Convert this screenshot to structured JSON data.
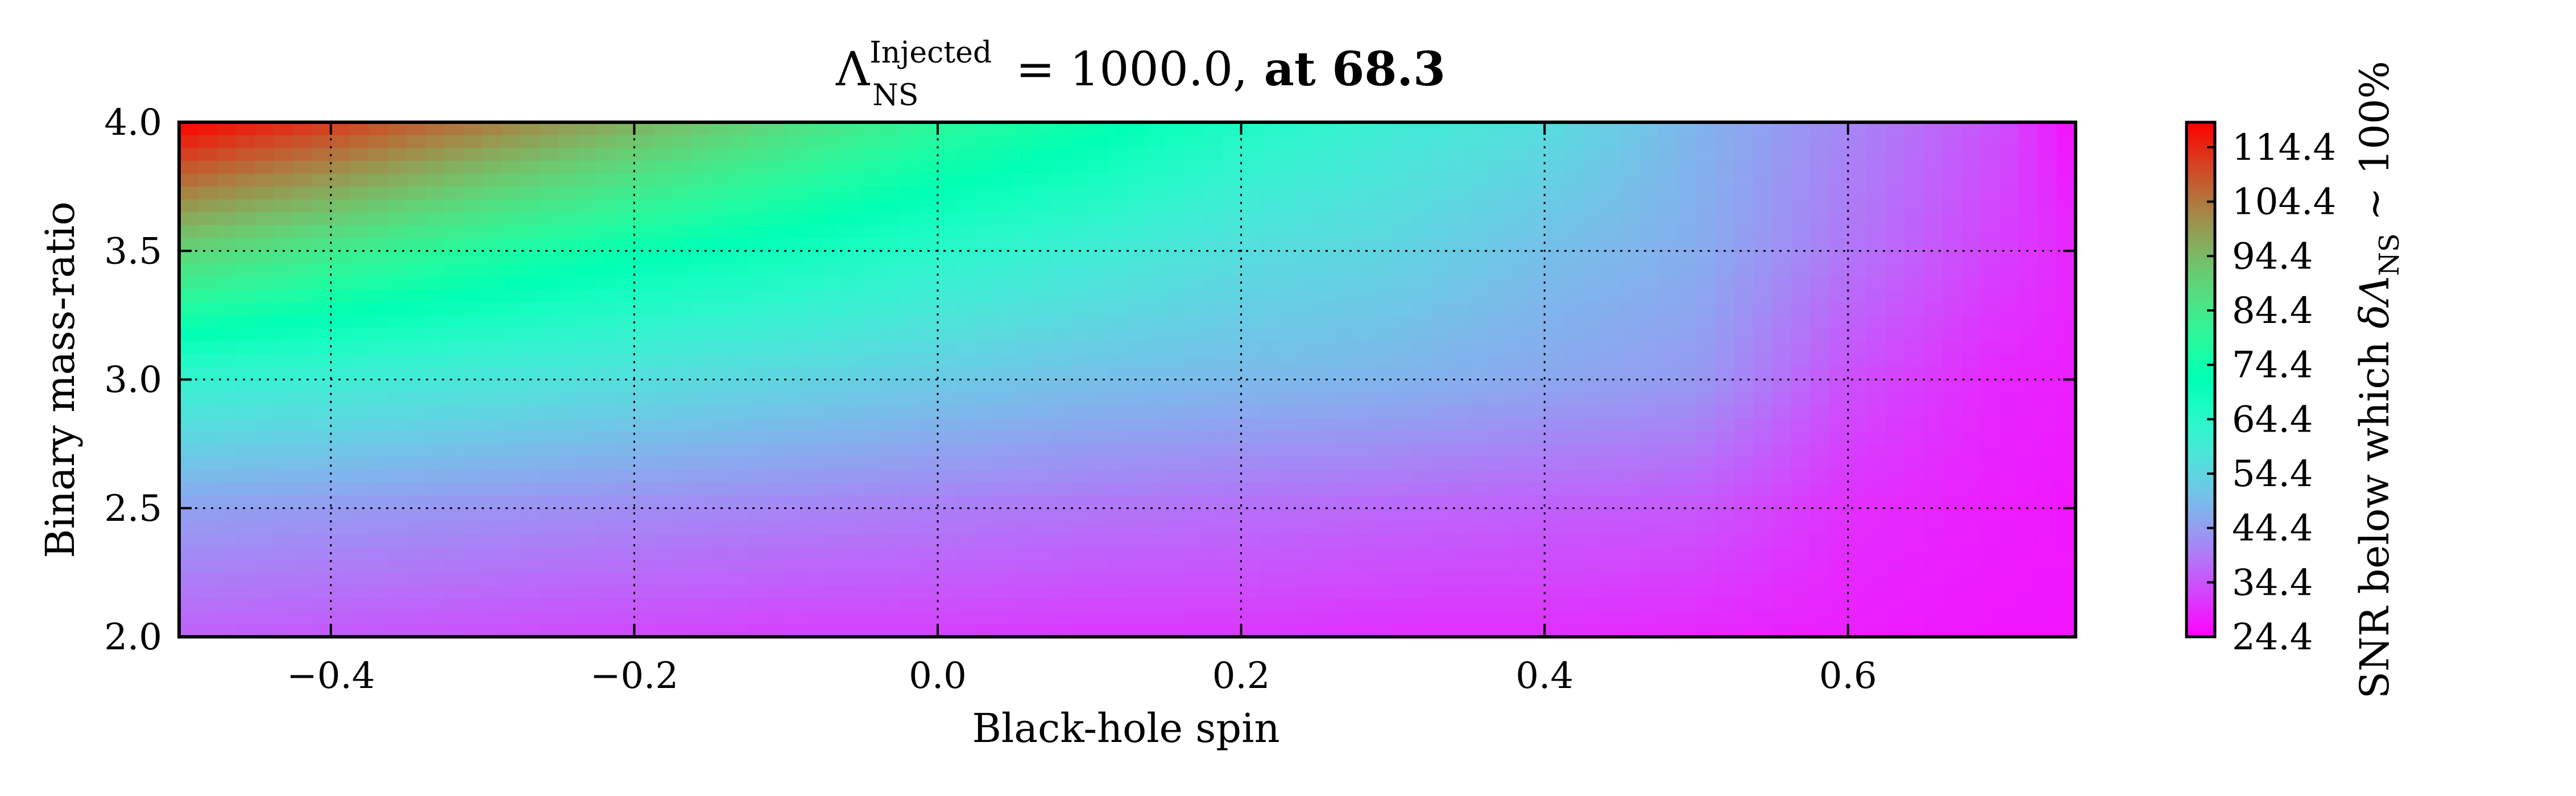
{
  "chart_data": {
    "type": "heatmap",
    "title": {
      "symbol": "Λ",
      "superscript": "Injected",
      "subscript": "NS",
      "equation_rest": " = 1000.0,",
      "suffix": " at 68.3"
    },
    "xlabel": "Black-hole spin",
    "ylabel": "Binary mass-ratio",
    "xlim": [
      -0.5,
      0.75
    ],
    "ylim": [
      2.0,
      4.0
    ],
    "x_ticks": [
      -0.4,
      -0.2,
      0.0,
      0.2,
      0.4,
      0.6
    ],
    "x_tick_labels": [
      "−0.4",
      "−0.2",
      "0.0",
      "0.2",
      "0.4",
      "0.6"
    ],
    "y_ticks": [
      2.0,
      2.5,
      3.0,
      3.5,
      4.0
    ],
    "y_tick_labels": [
      "2.0",
      "2.5",
      "3.0",
      "3.5",
      "4.0"
    ],
    "grid": true,
    "grid_style": "dotted",
    "colormap": "rainbow",
    "colorbar": {
      "label_prefix": "SNR below which ",
      "label_math": "δΛ",
      "label_sub": "NS",
      "label_suffix": " ~ 100%",
      "range": [
        24.4,
        119.0
      ],
      "ticks": [
        24.4,
        34.4,
        44.4,
        54.4,
        64.4,
        74.4,
        84.4,
        94.4,
        104.4,
        114.4
      ],
      "tick_labels": [
        "24.4",
        "34.4",
        "44.4",
        "54.4",
        "64.4",
        "74.4",
        "84.4",
        "94.4",
        "104.4",
        "114.4"
      ]
    },
    "x": [
      -0.5,
      -0.4,
      -0.3,
      -0.2,
      -0.1,
      0.0,
      0.1,
      0.2,
      0.3,
      0.4,
      0.5,
      0.6,
      0.7,
      0.75
    ],
    "y": [
      2.0,
      2.5,
      3.0,
      3.5,
      4.0
    ],
    "z": [
      [
        36,
        35,
        34,
        33,
        32,
        32,
        31,
        31,
        30,
        30,
        29,
        28,
        27,
        27
      ],
      [
        45,
        44,
        43,
        42,
        41,
        40,
        39,
        38,
        37,
        36,
        35,
        30,
        28,
        27
      ],
      [
        62,
        60,
        58,
        56,
        54,
        52,
        50,
        49,
        48,
        46,
        44,
        34,
        29,
        28
      ],
      [
        90,
        84,
        78,
        73,
        69,
        64,
        60,
        56,
        54,
        50,
        47,
        39,
        32,
        29
      ],
      [
        119,
        112,
        104,
        96,
        88,
        80,
        74,
        66,
        60,
        56,
        48,
        41,
        34,
        26
      ]
    ]
  }
}
